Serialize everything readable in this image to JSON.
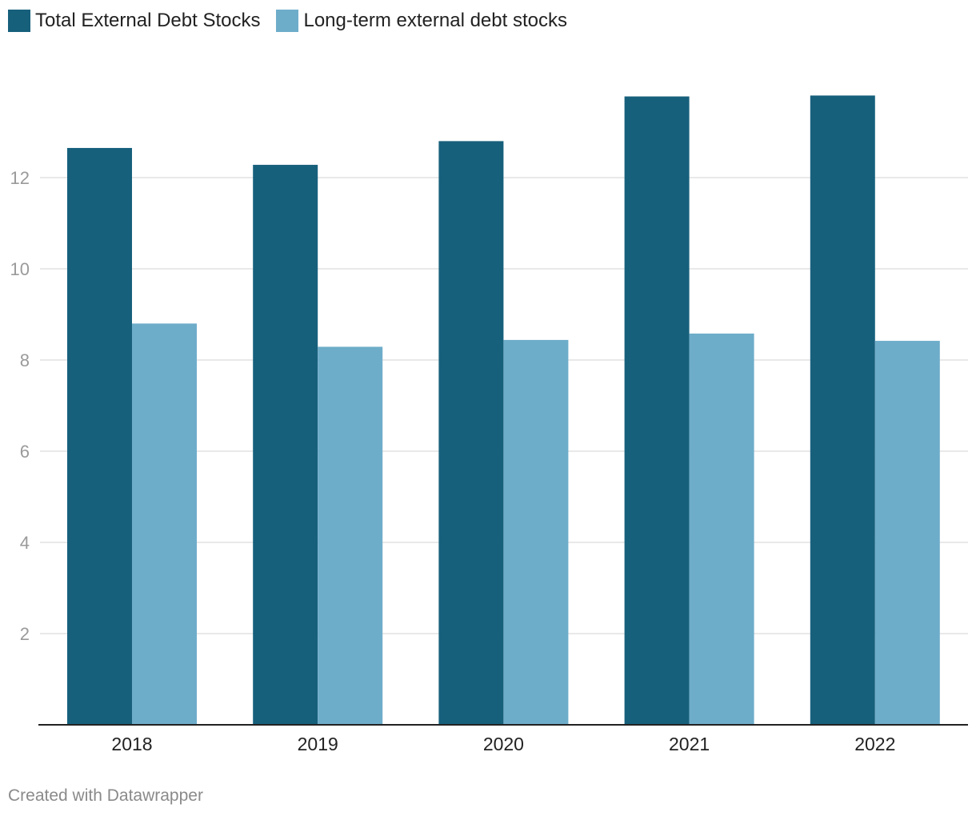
{
  "chart_data": {
    "type": "bar",
    "categories": [
      "2018",
      "2019",
      "2020",
      "2021",
      "2022"
    ],
    "series": [
      {
        "name": "Total External Debt Stocks",
        "color": "#17607c",
        "values": [
          12.65,
          12.28,
          12.8,
          13.78,
          13.8
        ]
      },
      {
        "name": "Long-term external debt stocks",
        "color": "#6eadca",
        "values": [
          8.8,
          8.29,
          8.44,
          8.58,
          8.42
        ]
      }
    ],
    "yticks": [
      2,
      4,
      6,
      8,
      10,
      12
    ],
    "ylim": [
      0,
      14.35
    ],
    "grid": true,
    "legend_position": "top-left",
    "title": "",
    "xlabel": "",
    "ylabel": ""
  },
  "footer": {
    "credit": "Created with Datawrapper"
  }
}
